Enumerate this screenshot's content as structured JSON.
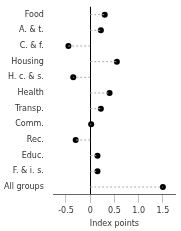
{
  "chart_data": {
    "type": "lollipop",
    "orientation": "horizontal",
    "categories": [
      "Food",
      "A. & t.",
      "C. & f.",
      "Housing",
      "H. c. & s.",
      "Health",
      "Transp.",
      "Comm.",
      "Rec.",
      "Educ.",
      "F. & i. s.",
      "All groups"
    ],
    "values": [
      0.3,
      0.22,
      -0.45,
      0.55,
      -0.35,
      0.4,
      0.22,
      0.02,
      -0.3,
      0.15,
      0.15,
      1.5
    ],
    "xlabel": "Index points",
    "xlim": [
      -0.75,
      1.75
    ],
    "xticks": [
      -0.5,
      0,
      0.5,
      {
        "value": 1,
        "label": "1.0"
      },
      1.5
    ],
    "color": "#000000",
    "marker": "circle",
    "line_style": "dashed",
    "grid": false
  }
}
